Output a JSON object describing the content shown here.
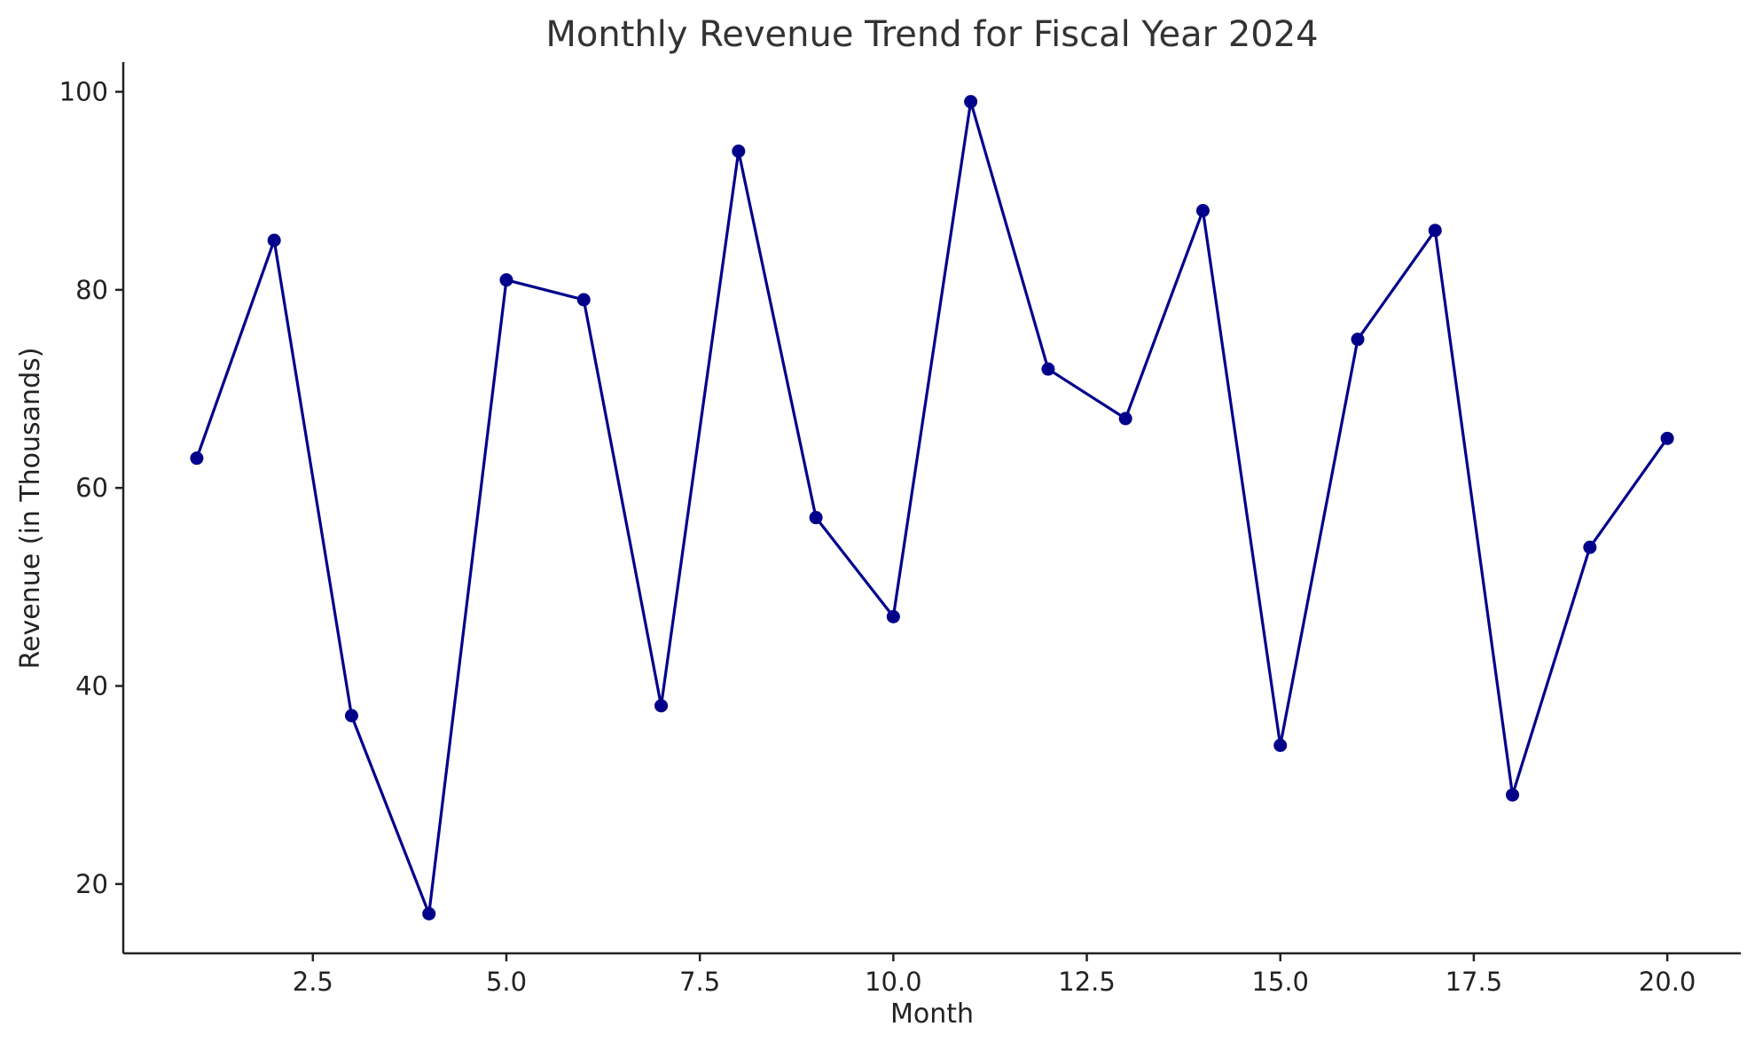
{
  "chart_data": {
    "type": "line",
    "title": "Monthly Revenue Trend for Fiscal Year 2024",
    "xlabel": "Month",
    "ylabel": "Revenue (in Thousands)",
    "xlim": [
      0.05,
      20.95
    ],
    "ylim": [
      13,
      103
    ],
    "grid": false,
    "legend": "none",
    "x_ticks": [
      2.5,
      5.0,
      7.5,
      10.0,
      12.5,
      15.0,
      17.5,
      20.0
    ],
    "x_tick_labels": [
      "2.5",
      "5.0",
      "7.5",
      "10.0",
      "12.5",
      "15.0",
      "17.5",
      "20.0"
    ],
    "y_ticks": [
      20,
      40,
      60,
      80,
      100
    ],
    "y_tick_labels": [
      "20",
      "40",
      "60",
      "80",
      "100"
    ],
    "series": [
      {
        "x": [
          1,
          2,
          3,
          4,
          5,
          6,
          7,
          8,
          9,
          10,
          11,
          12,
          13,
          14,
          15,
          16,
          17,
          18,
          19,
          20
        ],
        "values": [
          63,
          85,
          37,
          17,
          81,
          79,
          38,
          94,
          57,
          47,
          99,
          72,
          67,
          88,
          34,
          75,
          86,
          29,
          54,
          65
        ],
        "color": "#00008B",
        "marker": "circle"
      }
    ]
  }
}
